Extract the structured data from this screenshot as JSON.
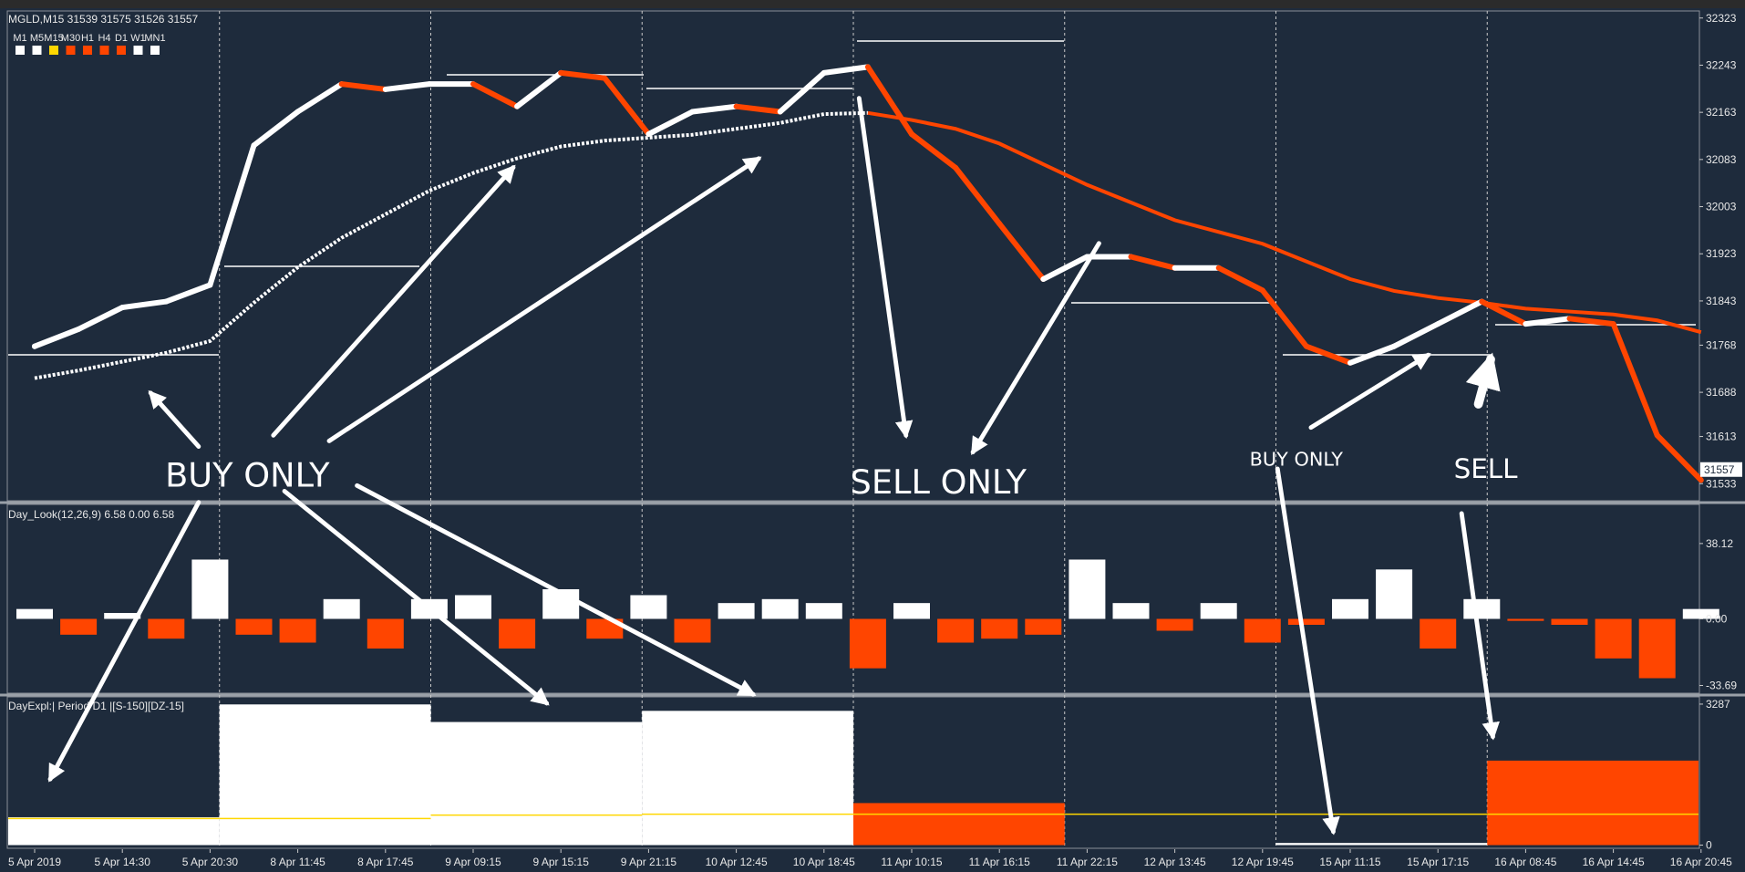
{
  "chart_data": [
    {
      "type": "line",
      "title": "MGLD,M15  31539 31575 31526 31557",
      "timeframes": [
        {
          "label": "M1",
          "color": "#ffffff"
        },
        {
          "label": "M5",
          "color": "#ffffff"
        },
        {
          "label": "M15",
          "color": "#ffd700"
        },
        {
          "label": "M30",
          "color": "#ff4500"
        },
        {
          "label": "H1",
          "color": "#ff4500"
        },
        {
          "label": "H4",
          "color": "#ff4500"
        },
        {
          "label": "D1",
          "color": "#ff4500"
        },
        {
          "label": "W1",
          "color": "#ffffff"
        },
        {
          "label": "MN1",
          "color": "#ffffff"
        }
      ],
      "categories": [
        "5 Apr 2019",
        null,
        "5 Apr 14:30",
        null,
        "5 Apr 20:30",
        null,
        "8 Apr 11:45",
        null,
        "8 Apr 17:45",
        null,
        "9 Apr 09:15",
        null,
        "9 Apr 15:15",
        null,
        "9 Apr 21:15",
        null,
        "10 Apr 12:45",
        null,
        "10 Apr 18:45",
        null,
        "11 Apr 10:15",
        null,
        "11 Apr 16:15",
        null,
        "11 Apr 22:15",
        null,
        "12 Apr 13:45",
        null,
        "12 Apr 19:45",
        null,
        "15 Apr 11:15",
        null,
        "15 Apr 17:15",
        null,
        "16 Apr 08:45",
        null,
        "16 Apr 14:45",
        null,
        "16 Apr 20:45"
      ],
      "values": [
        31766,
        31795,
        31832,
        31842,
        31870,
        32107,
        32164,
        32211,
        32202,
        32211,
        32211,
        32173,
        32230,
        32221,
        32126,
        32164,
        32173,
        32164,
        32230,
        32240,
        32126,
        32069,
        31974,
        31880,
        31918,
        31918,
        31899,
        31899,
        31861,
        31766,
        31738,
        31766,
        31804,
        31842,
        31804,
        31813,
        31804,
        31615,
        31539
      ],
      "up_color": "#ffffff",
      "down_color": "#ff4500",
      "series": [
        {
          "color": "#ffffff",
          "style": "dotted",
          "values": [
            31712,
            31725,
            31740,
            31755,
            31775,
            31840,
            31900,
            31950,
            31990,
            32030,
            32060,
            32085,
            32105,
            32115,
            32120,
            32125,
            32135,
            32145,
            32160,
            32162,
            null,
            null,
            null,
            null,
            null,
            null,
            null,
            null,
            null,
            null,
            null,
            null,
            null,
            null,
            null,
            null,
            null,
            null,
            null
          ]
        },
        {
          "color": "#ff4500",
          "style": "solid",
          "values": [
            null,
            null,
            null,
            null,
            null,
            null,
            null,
            null,
            null,
            null,
            null,
            null,
            null,
            null,
            null,
            null,
            null,
            null,
            null,
            32162,
            32150,
            32135,
            32110,
            32075,
            32040,
            32010,
            31980,
            31960,
            31940,
            31910,
            31880,
            31860,
            31848,
            31840,
            31830,
            31825,
            31820,
            31810,
            31790
          ]
        }
      ],
      "last_price": 31557,
      "ylim": [
        31504,
        32335
      ],
      "yticks": [
        32323,
        32243,
        32163,
        32083,
        32003,
        31923,
        31843,
        31768,
        31688,
        31613,
        31533
      ],
      "annotations": [
        "BUY ONLY",
        "SELL ONLY",
        "BUY ONLY",
        "SELL"
      ]
    },
    {
      "type": "bar",
      "title": "Day_Look(12,26,9) 6.58 0.00 6.58",
      "values": [
        5,
        -8,
        3,
        -10,
        30,
        -8,
        -12,
        10,
        -15,
        10,
        12,
        -15,
        15,
        -10,
        12,
        -12,
        8,
        10,
        8,
        -25,
        8,
        -12,
        -10,
        -8,
        30,
        8,
        -6,
        8,
        -12,
        -3,
        10,
        25,
        -15,
        10,
        -1,
        -3,
        -20,
        -30,
        5
      ],
      "up_color": "#ffffff",
      "down_color": "#ff4500",
      "ylim": [
        -37.6,
        57.9
      ],
      "yticks": [
        38.12,
        {
          "value": 0,
          "label": "0.00"
        },
        -33.69
      ]
    },
    {
      "type": "bar",
      "title": "DayExpl:| Period D1 |[S-150][DZ-15]",
      "categories": [
        null,
        null,
        null,
        null,
        null,
        null,
        null,
        null
      ],
      "values": [
        650,
        3280,
        2870,
        3130,
        980,
        0,
        50,
        1970
      ],
      "colors": [
        "#ffffff",
        "#ffffff",
        "#ffffff",
        "#ffffff",
        "#ff4500",
        "#ff4500",
        "#ffffff",
        "#ff4500"
      ],
      "level": {
        "color": "#ffd700",
        "values": [
          620,
          620,
          700,
          720,
          720,
          720,
          720,
          720
        ]
      },
      "ylim": [
        -74,
        3456
      ],
      "yticks": [
        3287,
        0
      ]
    }
  ]
}
